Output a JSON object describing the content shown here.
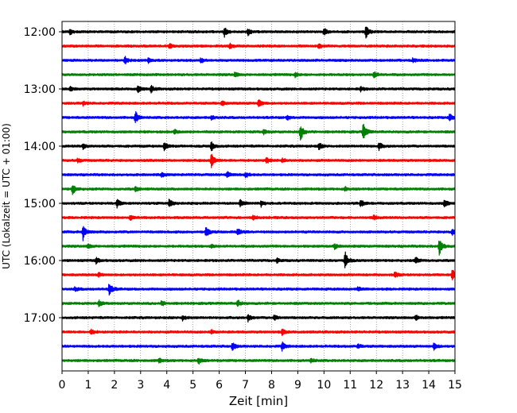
{
  "chart_data": {
    "type": "line",
    "title": "",
    "xlabel": "Zeit  [min]",
    "ylabel": "UTC (Lokalzeit = UTC + 01:00)",
    "xlim": [
      0,
      15
    ],
    "x_ticks": [
      0,
      1,
      2,
      3,
      4,
      5,
      6,
      7,
      8,
      9,
      10,
      11,
      12,
      13,
      14,
      15
    ],
    "y_tick_labels": [
      "12:00",
      "13:00",
      "14:00",
      "15:00",
      "16:00",
      "17:00"
    ],
    "grid": "vertical dotted at each minute",
    "color_cycle": [
      "#000000",
      "#ff0000",
      "#0000ff",
      "#008000"
    ],
    "series": [
      {
        "start": "12:00",
        "color": "#000000",
        "events": [
          {
            "t": 6.2,
            "a": 0.7
          },
          {
            "t": 7.1,
            "a": 0.5
          },
          {
            "t": 10.0,
            "a": 0.5
          },
          {
            "t": 11.6,
            "a": 0.9
          },
          {
            "t": 0.3,
            "a": 0.4
          }
        ]
      },
      {
        "start": "12:15",
        "color": "#ff0000",
        "events": [
          {
            "t": 4.1,
            "a": 0.3
          },
          {
            "t": 6.4,
            "a": 0.3
          },
          {
            "t": 9.8,
            "a": 0.3
          }
        ]
      },
      {
        "start": "12:30",
        "color": "#0000ff",
        "events": [
          {
            "t": 2.4,
            "a": 0.5
          },
          {
            "t": 3.3,
            "a": 0.3
          },
          {
            "t": 5.3,
            "a": 0.3
          },
          {
            "t": 13.4,
            "a": 0.3
          }
        ]
      },
      {
        "start": "12:45",
        "color": "#008000",
        "events": [
          {
            "t": 6.6,
            "a": 0.3
          },
          {
            "t": 11.9,
            "a": 0.5
          },
          {
            "t": 8.9,
            "a": 0.3
          }
        ]
      },
      {
        "start": "13:00",
        "color": "#000000",
        "events": [
          {
            "t": 2.9,
            "a": 0.5
          },
          {
            "t": 3.4,
            "a": 0.5
          },
          {
            "t": 0.3,
            "a": 0.3
          },
          {
            "t": 11.4,
            "a": 0.3
          }
        ]
      },
      {
        "start": "13:15",
        "color": "#ff0000",
        "events": [
          {
            "t": 7.5,
            "a": 0.6
          },
          {
            "t": 0.8,
            "a": 0.3
          },
          {
            "t": 6.1,
            "a": 0.3
          }
        ]
      },
      {
        "start": "13:30",
        "color": "#0000ff",
        "events": [
          {
            "t": 2.8,
            "a": 0.9
          },
          {
            "t": 14.8,
            "a": 0.6
          },
          {
            "t": 5.7,
            "a": 0.3
          },
          {
            "t": 8.6,
            "a": 0.3
          }
        ]
      },
      {
        "start": "13:45",
        "color": "#008000",
        "events": [
          {
            "t": 9.1,
            "a": 1.2
          },
          {
            "t": 11.5,
            "a": 1.3
          },
          {
            "t": 7.7,
            "a": 0.3
          },
          {
            "t": 4.3,
            "a": 0.3
          }
        ]
      },
      {
        "start": "14:00",
        "color": "#000000",
        "events": [
          {
            "t": 3.9,
            "a": 0.6
          },
          {
            "t": 5.7,
            "a": 0.8
          },
          {
            "t": 9.8,
            "a": 0.5
          },
          {
            "t": 12.1,
            "a": 0.5
          },
          {
            "t": 0.8,
            "a": 0.4
          }
        ]
      },
      {
        "start": "14:15",
        "color": "#ff0000",
        "events": [
          {
            "t": 5.7,
            "a": 1.0
          },
          {
            "t": 7.8,
            "a": 0.4
          },
          {
            "t": 0.6,
            "a": 0.3
          },
          {
            "t": 8.4,
            "a": 0.3
          }
        ]
      },
      {
        "start": "14:30",
        "color": "#0000ff",
        "events": [
          {
            "t": 6.3,
            "a": 0.5
          },
          {
            "t": 7.0,
            "a": 0.4
          },
          {
            "t": 3.8,
            "a": 0.3
          }
        ]
      },
      {
        "start": "14:45",
        "color": "#008000",
        "events": [
          {
            "t": 0.4,
            "a": 0.7
          },
          {
            "t": 2.8,
            "a": 0.3
          },
          {
            "t": 10.8,
            "a": 0.3
          }
        ]
      },
      {
        "start": "15:00",
        "color": "#000000",
        "events": [
          {
            "t": 2.1,
            "a": 0.6
          },
          {
            "t": 4.1,
            "a": 0.7
          },
          {
            "t": 6.8,
            "a": 0.5
          },
          {
            "t": 11.4,
            "a": 0.5
          },
          {
            "t": 14.6,
            "a": 0.6
          },
          {
            "t": 7.6,
            "a": 0.4
          }
        ]
      },
      {
        "start": "15:15",
        "color": "#ff0000",
        "events": [
          {
            "t": 2.6,
            "a": 0.3
          },
          {
            "t": 7.3,
            "a": 0.3
          },
          {
            "t": 11.9,
            "a": 0.3
          }
        ]
      },
      {
        "start": "15:30",
        "color": "#0000ff",
        "events": [
          {
            "t": 0.8,
            "a": 1.1
          },
          {
            "t": 5.5,
            "a": 0.7
          },
          {
            "t": 6.7,
            "a": 0.5
          },
          {
            "t": 14.9,
            "a": 0.5
          }
        ]
      },
      {
        "start": "15:45",
        "color": "#008000",
        "events": [
          {
            "t": 14.4,
            "a": 1.4
          },
          {
            "t": 10.4,
            "a": 0.4
          },
          {
            "t": 5.7,
            "a": 0.3
          },
          {
            "t": 1.0,
            "a": 0.3
          }
        ]
      },
      {
        "start": "16:00",
        "color": "#000000",
        "events": [
          {
            "t": 10.8,
            "a": 1.3
          },
          {
            "t": 13.5,
            "a": 0.5
          },
          {
            "t": 1.3,
            "a": 0.4
          },
          {
            "t": 8.2,
            "a": 0.3
          }
        ]
      },
      {
        "start": "16:15",
        "color": "#ff0000",
        "events": [
          {
            "t": 14.9,
            "a": 0.9
          },
          {
            "t": 1.4,
            "a": 0.3
          },
          {
            "t": 12.7,
            "a": 0.4
          }
        ]
      },
      {
        "start": "16:30",
        "color": "#0000ff",
        "events": [
          {
            "t": 1.8,
            "a": 1.0
          },
          {
            "t": 0.5,
            "a": 0.3
          },
          {
            "t": 11.3,
            "a": 0.3
          }
        ]
      },
      {
        "start": "16:45",
        "color": "#008000",
        "events": [
          {
            "t": 6.7,
            "a": 0.5
          },
          {
            "t": 1.4,
            "a": 0.4
          },
          {
            "t": 3.8,
            "a": 0.3
          }
        ]
      },
      {
        "start": "17:00",
        "color": "#000000",
        "events": [
          {
            "t": 4.6,
            "a": 0.4
          },
          {
            "t": 7.1,
            "a": 0.5
          },
          {
            "t": 8.1,
            "a": 0.4
          },
          {
            "t": 13.5,
            "a": 0.4
          }
        ]
      },
      {
        "start": "17:15",
        "color": "#ff0000",
        "events": [
          {
            "t": 1.1,
            "a": 0.4
          },
          {
            "t": 8.4,
            "a": 0.4
          },
          {
            "t": 5.7,
            "a": 0.3
          }
        ]
      },
      {
        "start": "17:30",
        "color": "#0000ff",
        "events": [
          {
            "t": 6.5,
            "a": 0.6
          },
          {
            "t": 8.4,
            "a": 0.6
          },
          {
            "t": 14.2,
            "a": 0.5
          },
          {
            "t": 11.3,
            "a": 0.3
          }
        ]
      },
      {
        "start": "17:45",
        "color": "#008000",
        "events": [
          {
            "t": 5.2,
            "a": 0.5
          },
          {
            "t": 3.7,
            "a": 0.3
          },
          {
            "t": 9.5,
            "a": 0.3
          }
        ]
      }
    ]
  }
}
